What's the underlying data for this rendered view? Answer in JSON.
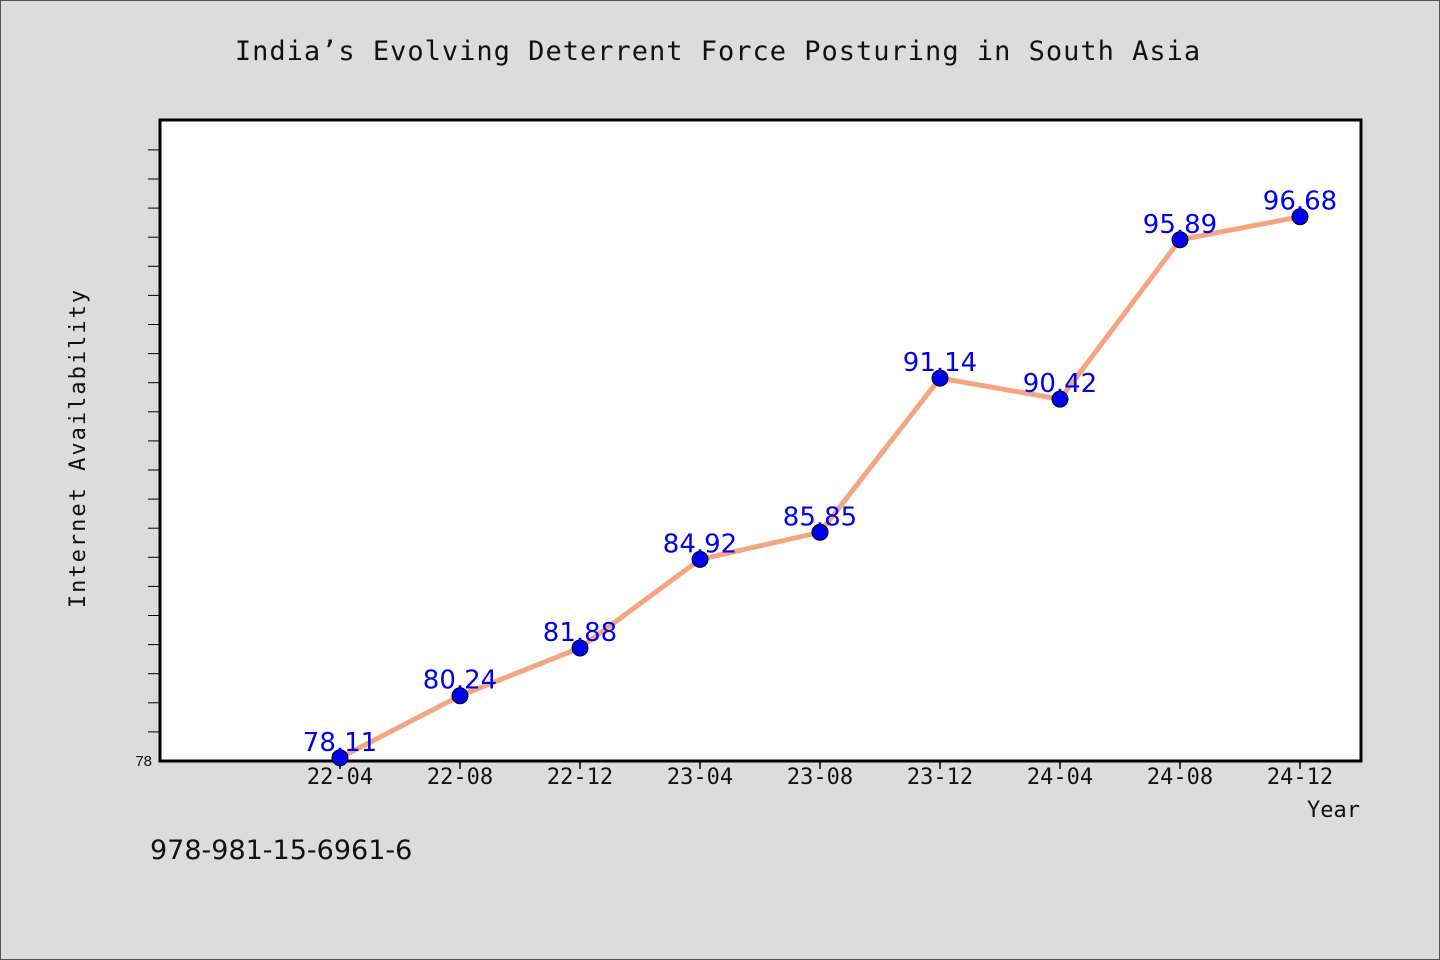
{
  "chart_data": {
    "type": "line",
    "title": "India’s Evolving Deterrent Force Posturing in South Asia",
    "xlabel": "Year",
    "ylabel": "Internet Availability",
    "categories": [
      "22-04",
      "22-08",
      "22-12",
      "23-04",
      "23-08",
      "23-12",
      "24-04",
      "24-08",
      "24-12"
    ],
    "series": [
      {
        "values": [
          78.11,
          80.24,
          81.88,
          84.92,
          85.85,
          91.14,
          90.42,
          95.89,
          96.68
        ],
        "labels": [
          "78.11",
          "80.24",
          "81.88",
          "84.92",
          "85.85",
          "91.14",
          "90.42",
          "95.89",
          "96.68"
        ]
      }
    ],
    "ylim": [
      78,
      100
    ],
    "y_tick_labels": [
      "78"
    ],
    "grid": false,
    "colors": {
      "line": "#f4a582",
      "marker": "#0000ee",
      "data_label": "#0000ee",
      "background": "#dcdcdc",
      "plot_background": "#ffffff"
    }
  },
  "footer": {
    "isbn": "978-981-15-6961-6"
  }
}
